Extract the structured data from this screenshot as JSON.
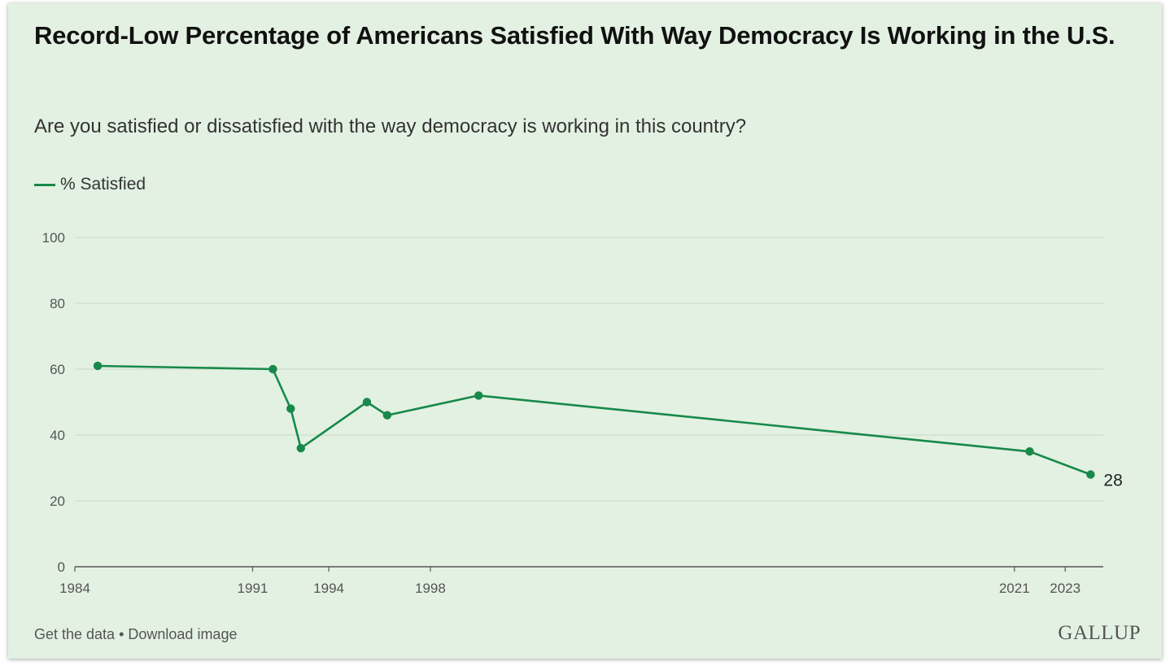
{
  "chart_data": {
    "type": "line",
    "title": "Record-Low Percentage of Americans Satisfied With Way Democracy Is Working in the U.S.",
    "subtitle": "Are you satisfied or dissatisfied with the way democracy is working in this country?",
    "series": [
      {
        "name": "% Satisfied",
        "color": "#17894a",
        "points": [
          {
            "x": 1984.9,
            "y": 61
          },
          {
            "x": 1991.8,
            "y": 60
          },
          {
            "x": 1992.5,
            "y": 48
          },
          {
            "x": 1992.9,
            "y": 36
          },
          {
            "x": 1995.5,
            "y": 50
          },
          {
            "x": 1996.3,
            "y": 46
          },
          {
            "x": 1999.9,
            "y": 52
          },
          {
            "x": 2021.6,
            "y": 35
          },
          {
            "x": 2024.0,
            "y": 28
          }
        ]
      }
    ],
    "end_label": "28",
    "xticks": [
      {
        "value": 1984,
        "label": "1984"
      },
      {
        "value": 1991,
        "label": "1991"
      },
      {
        "value": 1994,
        "label": "1994"
      },
      {
        "value": 1998,
        "label": "1998"
      },
      {
        "value": 2021,
        "label": "2021"
      },
      {
        "value": 2023,
        "label": "2023"
      }
    ],
    "yticks": [
      0,
      20,
      40,
      60,
      80,
      100
    ],
    "ylim": [
      0,
      100
    ],
    "grid": true,
    "legend_position": "top-left"
  },
  "footer": {
    "get_data": "Get the data",
    "separator": " • ",
    "download": "Download image"
  },
  "brand": {
    "logo_text": "GALLUP"
  }
}
